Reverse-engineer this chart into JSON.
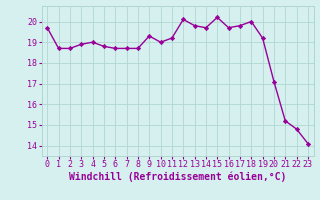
{
  "x": [
    0,
    1,
    2,
    3,
    4,
    5,
    6,
    7,
    8,
    9,
    10,
    11,
    12,
    13,
    14,
    15,
    16,
    17,
    18,
    19,
    20,
    21,
    22,
    23
  ],
  "y": [
    19.7,
    18.7,
    18.7,
    18.9,
    19.0,
    18.8,
    18.7,
    18.7,
    18.7,
    19.3,
    19.0,
    19.2,
    20.1,
    19.8,
    19.7,
    20.2,
    19.7,
    19.8,
    20.0,
    19.2,
    17.1,
    15.2,
    14.8,
    14.1
  ],
  "line_color": "#990099",
  "marker": "D",
  "marker_size": 2.2,
  "linewidth": 1.0,
  "xlabel": "Windchill (Refroidissement éolien,°C)",
  "xlabel_fontsize": 7,
  "xlim": [
    -0.5,
    23.5
  ],
  "ylim": [
    13.5,
    20.75
  ],
  "yticks": [
    14,
    15,
    16,
    17,
    18,
    19,
    20
  ],
  "xticks": [
    0,
    1,
    2,
    3,
    4,
    5,
    6,
    7,
    8,
    9,
    10,
    11,
    12,
    13,
    14,
    15,
    16,
    17,
    18,
    19,
    20,
    21,
    22,
    23
  ],
  "background_color": "#d5f0ee",
  "grid_color": "#b0d8d0",
  "tick_color": "#990099",
  "tick_fontsize": 6,
  "figure_bg": "#d5f0ee"
}
